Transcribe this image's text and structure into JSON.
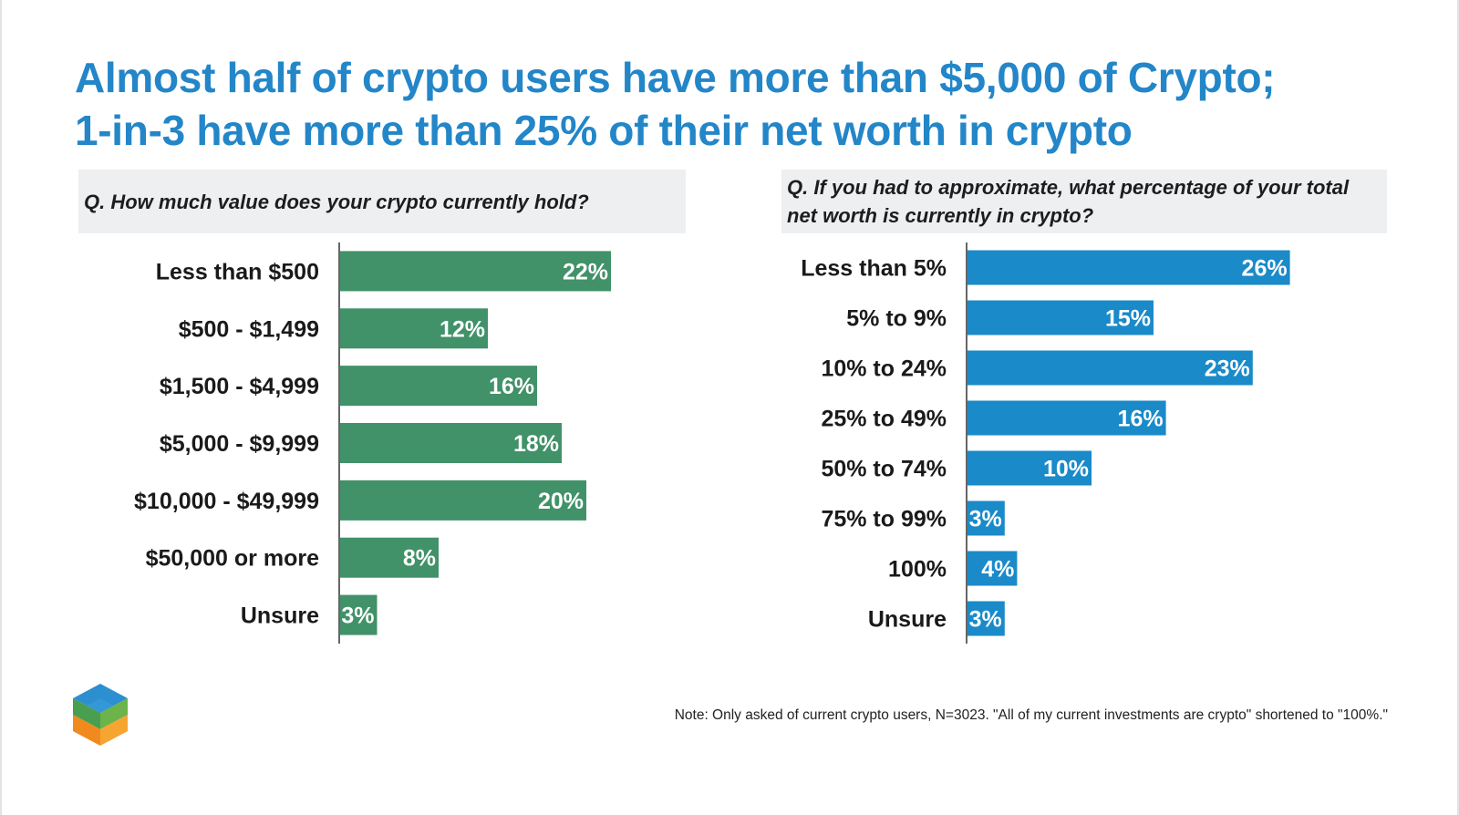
{
  "title": {
    "line1": "Almost half of crypto users have more than $5,000 of Crypto;",
    "line2": "1-in-3 have more than 25% of their net worth in crypto"
  },
  "colors": {
    "title": "#2386c8",
    "left_bars": "#419169",
    "right_bars": "#1a8ac9",
    "question_bg": "#eeeff0"
  },
  "chart_data": [
    {
      "type": "bar",
      "orientation": "horizontal",
      "question": "Q. How much value does your crypto currently hold?",
      "categories": [
        "Less than $500",
        "$500 - $1,499",
        "$1,500 - $4,999",
        "$5,000 - $9,999",
        "$10,000 - $49,999",
        "$50,000 or more",
        "Unsure"
      ],
      "values": [
        22,
        12,
        16,
        18,
        20,
        8,
        3
      ],
      "value_labels": [
        "22%",
        "12%",
        "16%",
        "18%",
        "20%",
        "8%",
        "3%"
      ],
      "unit": "%",
      "color": "#419169"
    },
    {
      "type": "bar",
      "orientation": "horizontal",
      "question": "Q. If you had to approximate, what percentage of your total net worth is currently in crypto?",
      "categories": [
        "Less than 5%",
        "5% to 9%",
        "10% to 24%",
        "25% to 49%",
        "50% to 74%",
        "75% to 99%",
        "100%",
        "Unsure"
      ],
      "values": [
        26,
        15,
        23,
        16,
        10,
        3,
        4,
        3
      ],
      "value_labels": [
        "26%",
        "15%",
        "23%",
        "16%",
        "10%",
        "3%",
        "4%",
        "3%"
      ],
      "unit": "%",
      "color": "#1a8ac9"
    }
  ],
  "note": "Note: Only asked of current crypto users, N=3023. \"All of my current investments are crypto\" shortened to \"100%.\"",
  "logo": {
    "icon": "cube-logo-icon"
  }
}
